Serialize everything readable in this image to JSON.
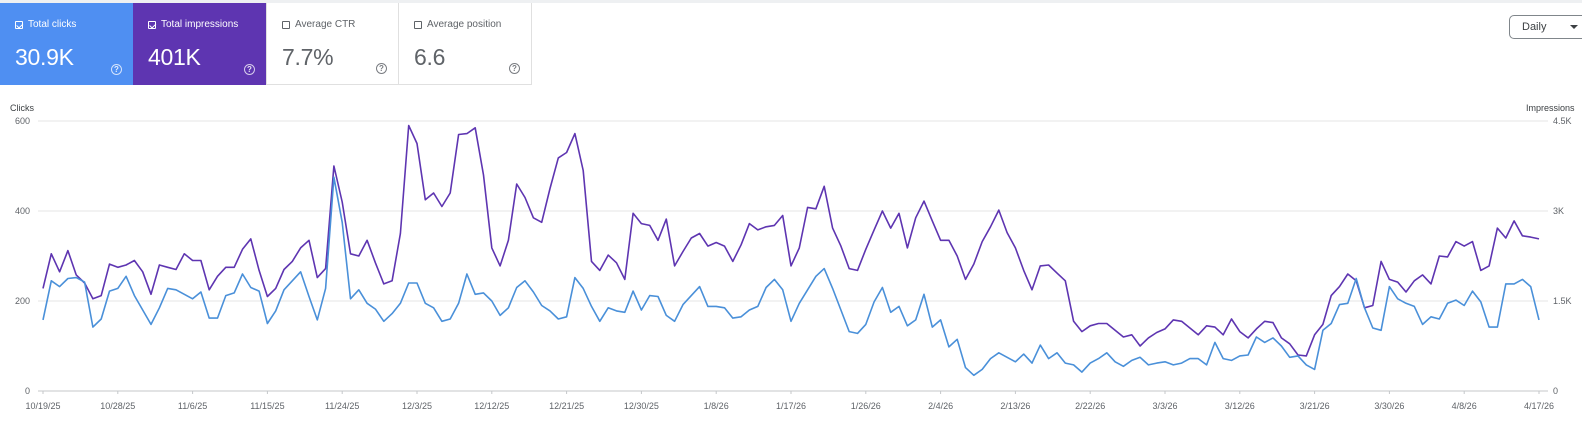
{
  "metrics": [
    {
      "label": "Total clicks",
      "value": "30.9K",
      "checked": true,
      "color": "#4f8ff2"
    },
    {
      "label": "Total impressions",
      "value": "401K",
      "checked": true,
      "color": "#5e35b1"
    },
    {
      "label": "Average CTR",
      "value": "7.7%",
      "checked": false
    },
    {
      "label": "Average position",
      "value": "6.6",
      "checked": false
    }
  ],
  "icons": {
    "help": "help-circle-icon",
    "checkbox": "checkbox-icon",
    "dropdown": "caret-down-icon"
  },
  "help_glyph": "?",
  "range_selector": {
    "label": "Daily"
  },
  "chart_data": {
    "type": "line",
    "x_tick_labels": [
      "10/19/25",
      "10/28/25",
      "11/6/25",
      "11/15/25",
      "11/24/25",
      "12/3/25",
      "12/12/25",
      "12/21/25",
      "12/30/25",
      "1/8/26",
      "1/17/26",
      "1/26/26",
      "2/4/26",
      "2/13/26",
      "2/22/26",
      "3/3/26",
      "3/12/26",
      "3/21/26",
      "3/30/26",
      "4/8/26",
      "4/17/26"
    ],
    "days": 181,
    "y_left": {
      "title": "Clicks",
      "ticks": [
        "0",
        "200",
        "400",
        "600"
      ],
      "min": 0,
      "max": 600
    },
    "y_right": {
      "title": "Impressions",
      "ticks": [
        "0",
        "1.5K",
        "3K",
        "4.5K"
      ],
      "min": 0,
      "max": 4500
    },
    "grid": true,
    "series": [
      {
        "name": "Total clicks",
        "axis": "left",
        "color": "#4a90d9",
        "values": [
          158,
          245,
          232,
          250,
          252,
          242,
          142,
          160,
          222,
          228,
          255,
          212,
          180,
          148,
          185,
          228,
          225,
          215,
          205,
          220,
          162,
          162,
          212,
          218,
          260,
          230,
          222,
          150,
          178,
          225,
          245,
          265,
          210,
          158,
          228,
          475,
          375,
          205,
          225,
          195,
          182,
          155,
          172,
          195,
          240,
          240,
          195,
          185,
          155,
          160,
          195,
          260,
          215,
          218,
          200,
          168,
          185,
          230,
          245,
          220,
          190,
          178,
          160,
          165,
          252,
          228,
          188,
          155,
          185,
          178,
          175,
          222,
          180,
          212,
          210,
          168,
          155,
          192,
          212,
          232,
          188,
          188,
          185,
          162,
          165,
          180,
          188,
          230,
          248,
          225,
          155,
          195,
          225,
          255,
          272,
          228,
          180,
          132,
          128,
          148,
          198,
          230,
          175,
          188,
          145,
          158,
          215,
          142,
          158,
          98,
          115,
          52,
          35,
          48,
          72,
          85,
          75,
          65,
          82,
          62,
          102,
          72,
          85,
          62,
          58,
          42,
          62,
          72,
          85,
          65,
          55,
          68,
          75,
          58,
          62,
          65,
          58,
          62,
          72,
          72,
          58,
          108,
          72,
          68,
          78,
          80,
          120,
          108,
          118,
          100,
          75,
          78,
          58,
          48,
          135,
          150,
          192,
          195,
          250,
          185,
          140,
          135,
          232,
          205,
          195,
          188,
          148,
          165,
          160,
          195,
          202,
          190,
          222,
          198,
          142,
          142,
          238,
          238,
          248,
          232,
          158
        ]
      },
      {
        "name": "Total impressions",
        "axis": "left",
        "color": "#5e35b1",
        "values": [
          228,
          305,
          265,
          312,
          258,
          240,
          205,
          212,
          282,
          275,
          280,
          290,
          265,
          215,
          280,
          275,
          270,
          305,
          290,
          290,
          225,
          255,
          275,
          275,
          315,
          338,
          268,
          210,
          228,
          270,
          288,
          318,
          335,
          252,
          272,
          500,
          420,
          305,
          300,
          335,
          285,
          238,
          245,
          350,
          590,
          550,
          425,
          440,
          410,
          440,
          570,
          572,
          585,
          480,
          318,
          278,
          335,
          460,
          430,
          385,
          375,
          450,
          518,
          530,
          572,
          490,
          288,
          268,
          302,
          285,
          248,
          395,
          372,
          368,
          335,
          382,
          278,
          310,
          340,
          350,
          322,
          330,
          322,
          288,
          325,
          372,
          358,
          365,
          368,
          390,
          278,
          318,
          408,
          405,
          455,
          362,
          322,
          272,
          268,
          315,
          358,
          400,
          362,
          395,
          318,
          385,
          422,
          378,
          335,
          335,
          300,
          248,
          282,
          332,
          365,
          402,
          352,
          318,
          268,
          225,
          278,
          280,
          262,
          245,
          155,
          132,
          145,
          150,
          150,
          135,
          120,
          125,
          100,
          118,
          130,
          138,
          158,
          155,
          140,
          125,
          145,
          142,
          125,
          160,
          132,
          118,
          138,
          155,
          152,
          118,
          105,
          80,
          78,
          125,
          148,
          212,
          232,
          260,
          245,
          185,
          190,
          288,
          248,
          242,
          220,
          245,
          258,
          238,
          300,
          298,
          332,
          322,
          332,
          268,
          278,
          362,
          340,
          378,
          345,
          342,
          338
        ]
      }
    ]
  }
}
